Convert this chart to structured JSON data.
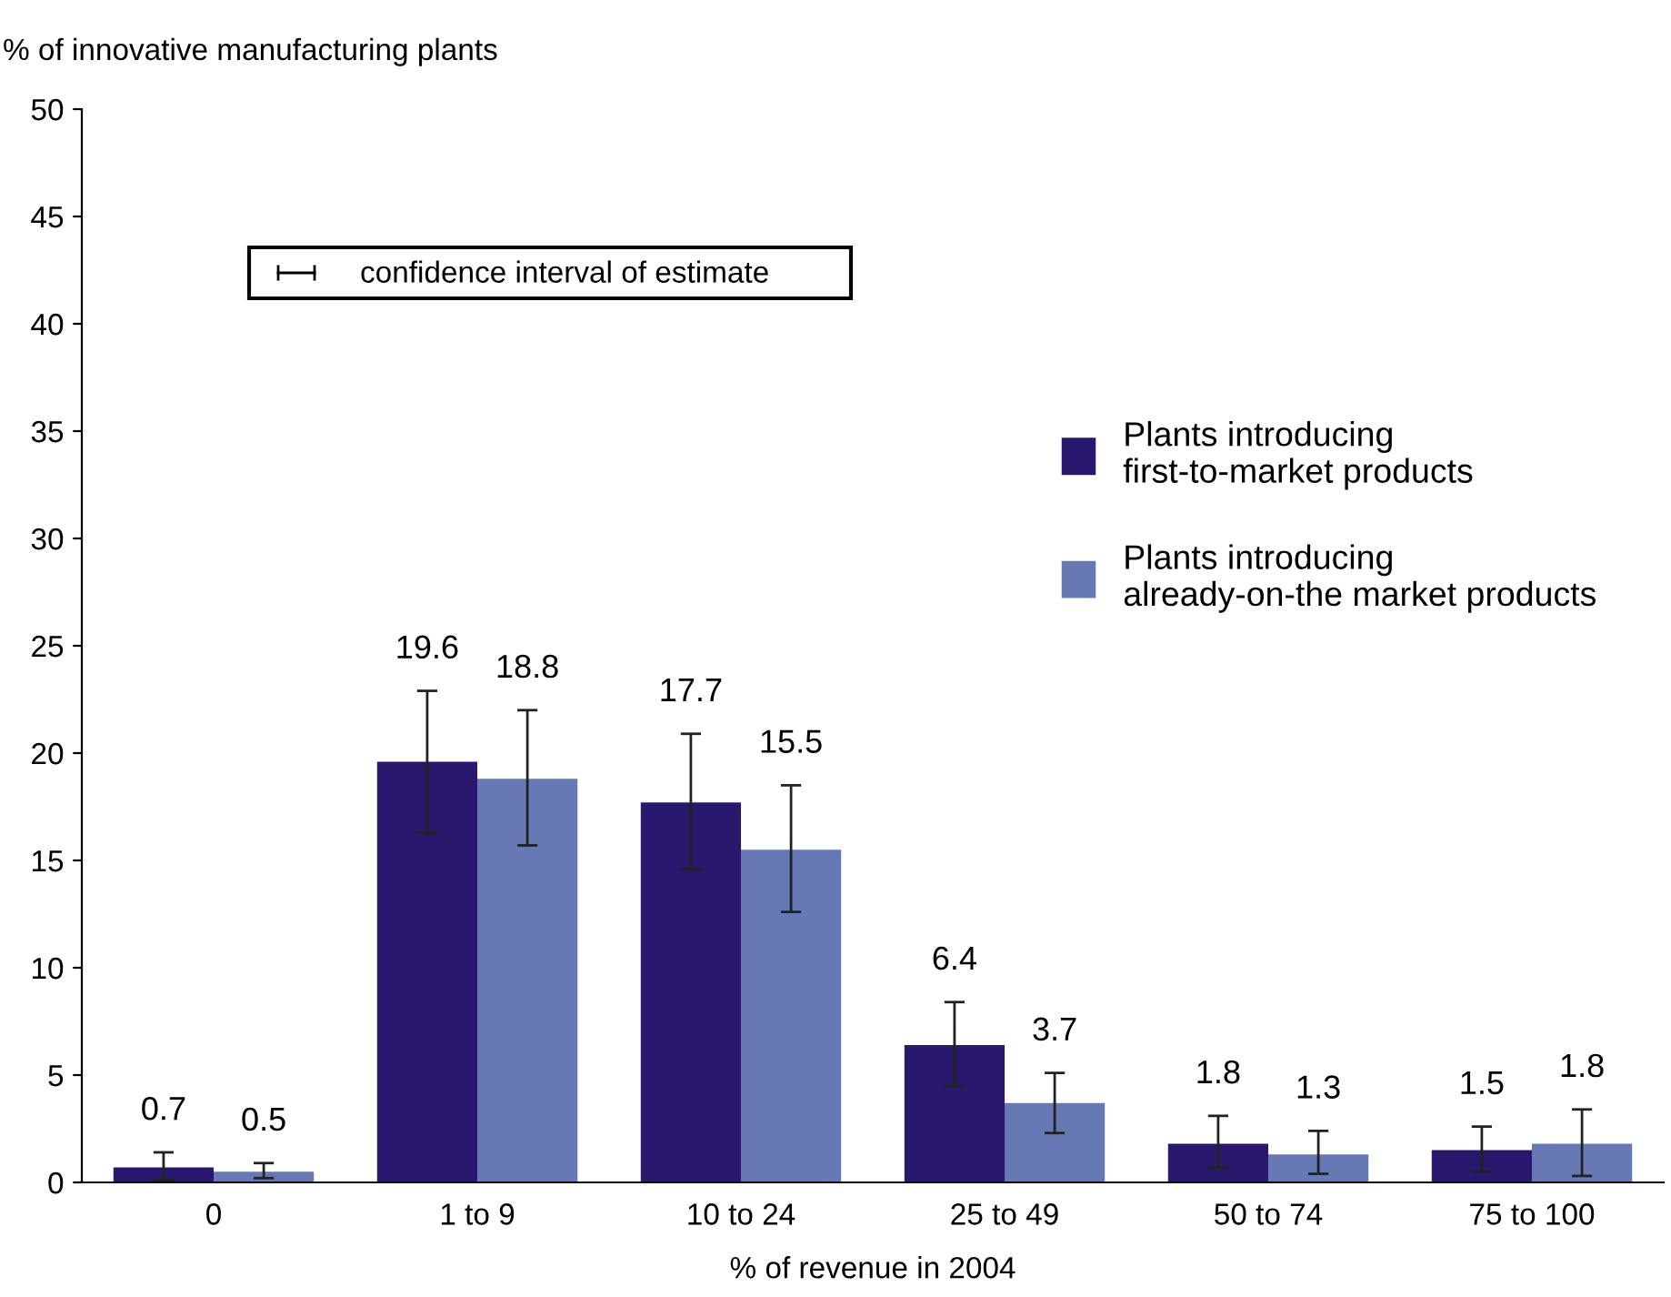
{
  "chart_data": {
    "type": "bar",
    "ylabel": "% of innovative manufacturing plants",
    "xlabel": "% of revenue in 2004",
    "categories": [
      "0",
      "1 to 9",
      "10 to 24",
      "25 to 49",
      "50 to 74",
      "75 to 100"
    ],
    "series": [
      {
        "name": "Plants introducing\nfirst-to-market products",
        "color": "#2a186e",
        "values": [
          0.7,
          19.6,
          17.7,
          6.4,
          1.8,
          1.5
        ],
        "errors": [
          [
            0.1,
            1.4
          ],
          [
            16.3,
            22.9
          ],
          [
            14.6,
            20.9
          ],
          [
            4.5,
            8.4
          ],
          [
            0.7,
            3.1
          ],
          [
            0.5,
            2.6
          ]
        ]
      },
      {
        "name": "Plants introducing\nalready-on-the market products",
        "color": "#6679b4",
        "values": [
          0.5,
          18.8,
          15.5,
          3.7,
          1.3,
          1.8
        ],
        "errors": [
          [
            0.2,
            0.9
          ],
          [
            15.7,
            22.0
          ],
          [
            12.6,
            18.5
          ],
          [
            2.3,
            5.1
          ],
          [
            0.4,
            2.4
          ],
          [
            0.3,
            3.4
          ]
        ]
      }
    ],
    "ylim": [
      0,
      50
    ],
    "yticks": [
      0,
      5,
      10,
      15,
      20,
      25,
      30,
      35,
      40,
      45,
      50
    ],
    "annotations": [
      "confidence interval of estimate"
    ],
    "data_labels": true,
    "legend": "right",
    "grid": false
  }
}
